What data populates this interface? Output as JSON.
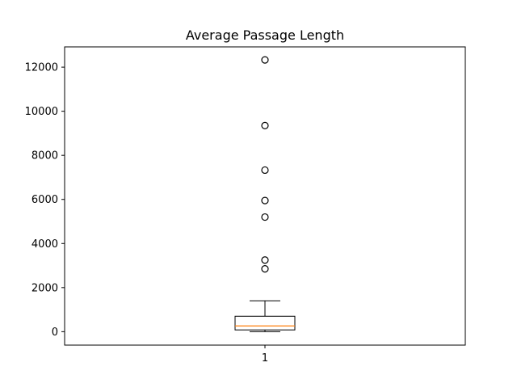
{
  "chart_data": {
    "type": "boxplot",
    "title": "Average Passage Length",
    "xlabel": "",
    "ylabel": "",
    "ylim": [
      -610,
      12920
    ],
    "y_ticks": [
      0,
      2000,
      4000,
      6000,
      8000,
      10000,
      12000
    ],
    "x_tick_labels": [
      "1"
    ],
    "grid": false,
    "legend": "none",
    "boxes": [
      {
        "label": "1",
        "whisker_low": 0,
        "q1": 80,
        "median": 260,
        "q3": 700,
        "whisker_high": 1400,
        "outliers": [
          2850,
          3250,
          5200,
          5950,
          7330,
          9350,
          12330
        ]
      }
    ],
    "colors": {
      "box": "#000000",
      "median": "#ff7f0e",
      "axes": "#000000",
      "background": "#ffffff"
    }
  }
}
